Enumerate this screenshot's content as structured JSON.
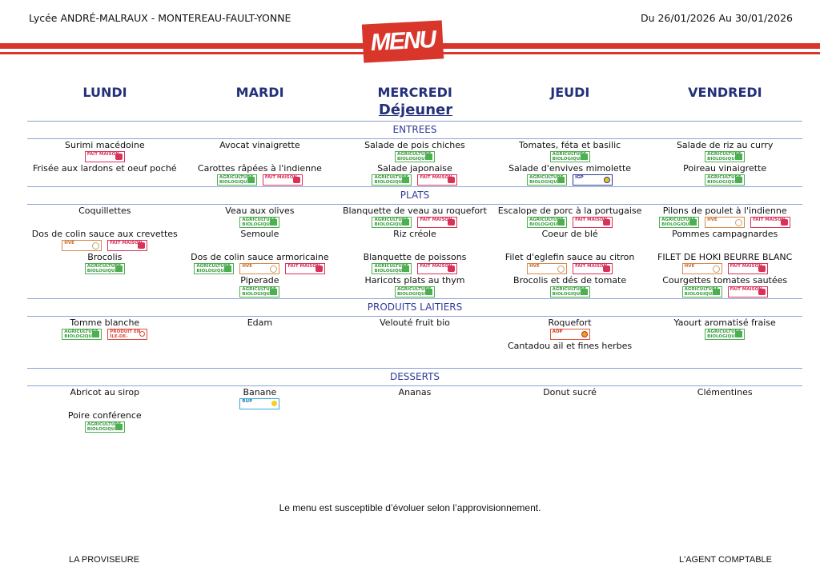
{
  "header": {
    "school": "Lycée ANDRÉ-MALRAUX - MONTEREAU-FAULT-YONNE",
    "dates": "Du 26/01/2026 Au 30/01/2026",
    "logo_text": "MENU",
    "meal": "Déjeuner"
  },
  "colors": {
    "brand_red": "#d9362b",
    "day_blue": "#23307a",
    "section_blue": "#2f3c9a",
    "rule": "#8aa3d2"
  },
  "days": [
    "LUNDI",
    "MARDI",
    "MERCREDI",
    "JEUDI",
    "VENDREDI"
  ],
  "badge_text": {
    "bio": "AGRICULTURE BIOLOGIQUE",
    "maison": "FAIT MAISON",
    "hve": "HVE",
    "igp": "IGP",
    "aop": "AOP",
    "idf": "PRODUIT EN ÎLE-DE-FRANCE",
    "rup": "RUP"
  },
  "sections": [
    {
      "title": "ENTREES",
      "days": [
        [
          {
            "dish": "Surimi macédoine",
            "labels": [
              "maison"
            ]
          },
          {
            "dish": "Frisée aux lardons et oeuf poché",
            "labels": []
          }
        ],
        [
          {
            "dish": "Avocat vinaigrette",
            "labels": []
          },
          {
            "dish": "Carottes râpées à l'indienne",
            "labels": [
              "bio",
              "maison"
            ]
          }
        ],
        [
          {
            "dish": "Salade de pois chiches",
            "labels": [
              "bio"
            ]
          },
          {
            "dish": "Salade japonaise",
            "labels": [
              "bio",
              "maison"
            ]
          }
        ],
        [
          {
            "dish": "Tomates, féta et basilic",
            "labels": [
              "bio"
            ]
          },
          {
            "dish": "Salade d'envives mimolette",
            "labels": [
              "bio",
              "igp"
            ]
          }
        ],
        [
          {
            "dish": "Salade de riz au curry",
            "labels": [
              "bio"
            ]
          },
          {
            "dish": "Poireau vinaigrette",
            "labels": [
              "bio"
            ]
          }
        ]
      ]
    },
    {
      "title": "PLATS",
      "days": [
        [
          {
            "dish": "Coquillettes",
            "labels": []
          },
          {
            "dish": "Dos de colin sauce aux crevettes",
            "labels": [
              "hve",
              "maison"
            ]
          },
          {
            "dish": "Brocolis",
            "labels": [
              "bio"
            ]
          }
        ],
        [
          {
            "dish": "Veau aux olives",
            "labels": [
              "bio"
            ]
          },
          {
            "dish": "Semoule",
            "labels": []
          },
          {
            "dish": "Dos de colin sauce armoricaine",
            "labels": [
              "bio",
              "hve",
              "maison"
            ]
          },
          {
            "dish": "Piperade",
            "labels": [
              "bio"
            ]
          }
        ],
        [
          {
            "dish": "Blanquette de veau au roquefort",
            "labels": [
              "bio",
              "maison"
            ]
          },
          {
            "dish": "Riz créole",
            "labels": []
          },
          {
            "dish": "Blanquette de poissons",
            "labels": [
              "bio",
              "maison"
            ]
          },
          {
            "dish": "Haricots plats au thym",
            "labels": [
              "bio"
            ]
          }
        ],
        [
          {
            "dish": "Escalope de porc à la portugaise",
            "labels": [
              "bio",
              "maison"
            ]
          },
          {
            "dish": "Coeur de blé",
            "labels": []
          },
          {
            "dish": "Filet d'eglefin sauce au citron",
            "labels": [
              "hve",
              "maison"
            ]
          },
          {
            "dish": "Brocolis et dés de tomate",
            "labels": [
              "bio"
            ]
          }
        ],
        [
          {
            "dish": "Pilons de poulet à l'indienne",
            "labels": [
              "bio",
              "hve",
              "maison"
            ]
          },
          {
            "dish": "Pommes campagnardes",
            "labels": []
          },
          {
            "dish": "FILET DE HOKI BEURRE BLANC",
            "labels": [
              "hve",
              "maison"
            ]
          },
          {
            "dish": "Courgettes tomates sautées",
            "labels": [
              "bio",
              "maison"
            ]
          }
        ]
      ]
    },
    {
      "title": "PRODUITS LAITIERS",
      "days": [
        [
          {
            "dish": "Tomme blanche",
            "labels": [
              "bio",
              "idf"
            ]
          }
        ],
        [
          {
            "dish": "Edam",
            "labels": []
          }
        ],
        [
          {
            "dish": "Velouté fruit bio",
            "labels": []
          }
        ],
        [
          {
            "dish": "Roquefort",
            "labels": [
              "aop"
            ]
          },
          {
            "dish": "Cantadou ail et fines herbes",
            "labels": []
          }
        ],
        [
          {
            "dish": "Yaourt aromatisé fraise",
            "labels": [
              "bio"
            ]
          }
        ]
      ]
    },
    {
      "title": "DESSERTS",
      "days": [
        [
          {
            "dish": "Abricot au sirop",
            "labels": []
          },
          {
            "dish": "Poire conférence",
            "labels": [
              "bio"
            ]
          }
        ],
        [
          {
            "dish": "Banane",
            "labels": [
              "rup"
            ]
          }
        ],
        [
          {
            "dish": "Ananas",
            "labels": []
          }
        ],
        [
          {
            "dish": "Donut sucré",
            "labels": []
          }
        ],
        [
          {
            "dish": "Clémentines",
            "labels": []
          }
        ]
      ]
    }
  ],
  "footer": {
    "note": "Le menu est susceptible d’évoluer selon l’approvisionnement.",
    "left": "LA PROVISEURE",
    "right": "L'AGENT COMPTABLE"
  }
}
